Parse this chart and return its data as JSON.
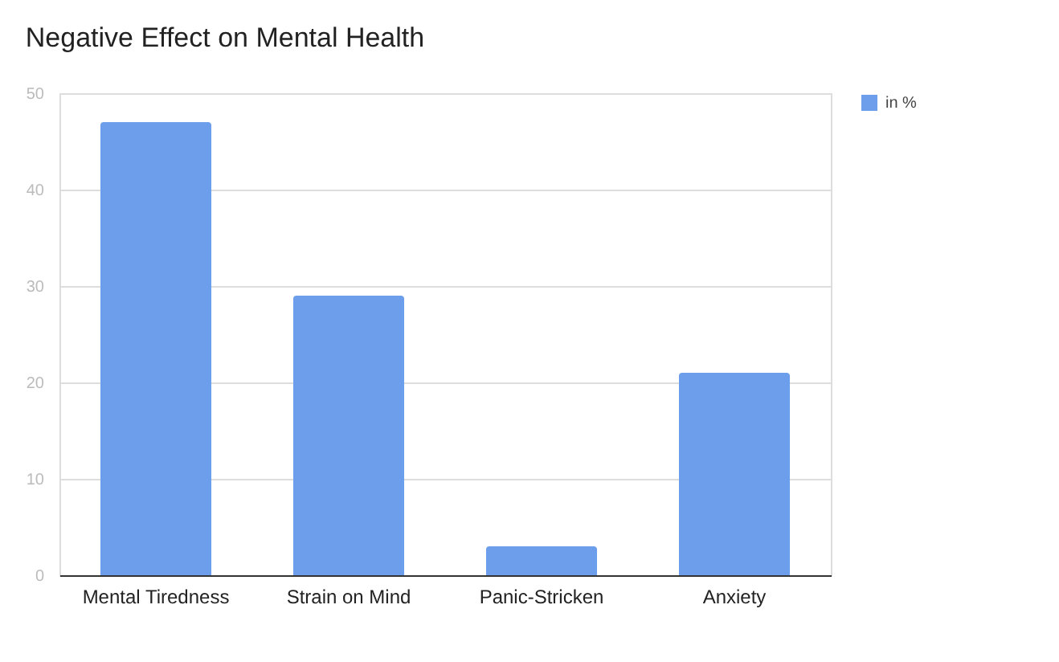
{
  "chart_data": {
    "type": "bar",
    "title": "Negative Effect on Mental Health",
    "categories": [
      "Mental Tiredness",
      "Strain on Mind",
      "Panic-Stricken",
      "Anxiety"
    ],
    "series": [
      {
        "name": "in %",
        "color": "#6d9eeb",
        "values": [
          47,
          29,
          3,
          21
        ]
      }
    ],
    "ylim": [
      0,
      50
    ],
    "yticks": [
      0,
      10,
      20,
      30,
      40,
      50
    ],
    "grid": "y",
    "legend": "top right"
  }
}
